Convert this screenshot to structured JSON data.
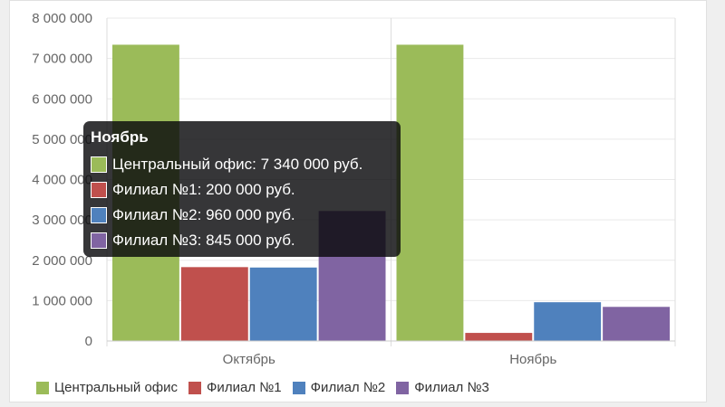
{
  "chart_data": {
    "type": "bar",
    "categories": [
      "Октябрь",
      "Ноябрь"
    ],
    "series": [
      {
        "name": "Центральный офис",
        "color": "#9bbb59",
        "values": [
          7340000,
          7340000
        ]
      },
      {
        "name": "Филиал №1",
        "color": "#c0504d",
        "values": [
          1830000,
          200000
        ]
      },
      {
        "name": "Филиал №2",
        "color": "#4f81bd",
        "values": [
          1820000,
          960000
        ]
      },
      {
        "name": "Филиал №3",
        "color": "#8064a2",
        "values": [
          3220000,
          845000
        ]
      }
    ],
    "yticks": [
      "0",
      "1 000 000",
      "2 000 000",
      "3 000 000",
      "4 000 000",
      "5 000 000",
      "6 000 000",
      "7 000 000",
      "8 000 000"
    ],
    "ylim": [
      0,
      8000000
    ],
    "grid": true,
    "legend_position": "bottom-left"
  },
  "tooltip": {
    "title": "Ноябрь",
    "rows": [
      {
        "text": "Центральный офис: 7 340 000 руб.",
        "color": "#9bbb59"
      },
      {
        "text": "Филиал №1: 200 000 руб.",
        "color": "#c0504d"
      },
      {
        "text": "Филиал №2: 960 000 руб.",
        "color": "#4f81bd"
      },
      {
        "text": "Филиал №3: 845 000 руб.",
        "color": "#8064a2"
      }
    ]
  }
}
